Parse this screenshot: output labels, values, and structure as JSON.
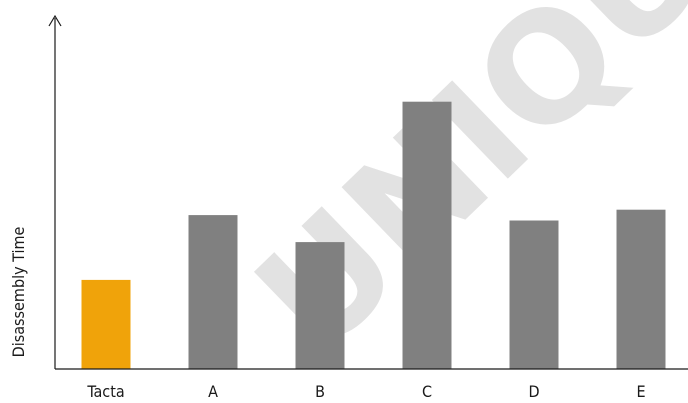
{
  "chart_data": {
    "type": "bar",
    "categories": [
      "Tacta",
      "A",
      "B",
      "C",
      "D",
      "E"
    ],
    "values": [
      33,
      57,
      47,
      99,
      55,
      59
    ],
    "bar_colors": [
      "#f0a30a",
      "#808080",
      "#808080",
      "#808080",
      "#808080",
      "#808080"
    ],
    "title": "",
    "xlabel": "",
    "ylabel": "Disassembly Time",
    "ylim": [
      0,
      130
    ],
    "grid": false,
    "legend": "none",
    "axis_color": "#1a1a1a",
    "watermark": "UNIQUE D"
  }
}
